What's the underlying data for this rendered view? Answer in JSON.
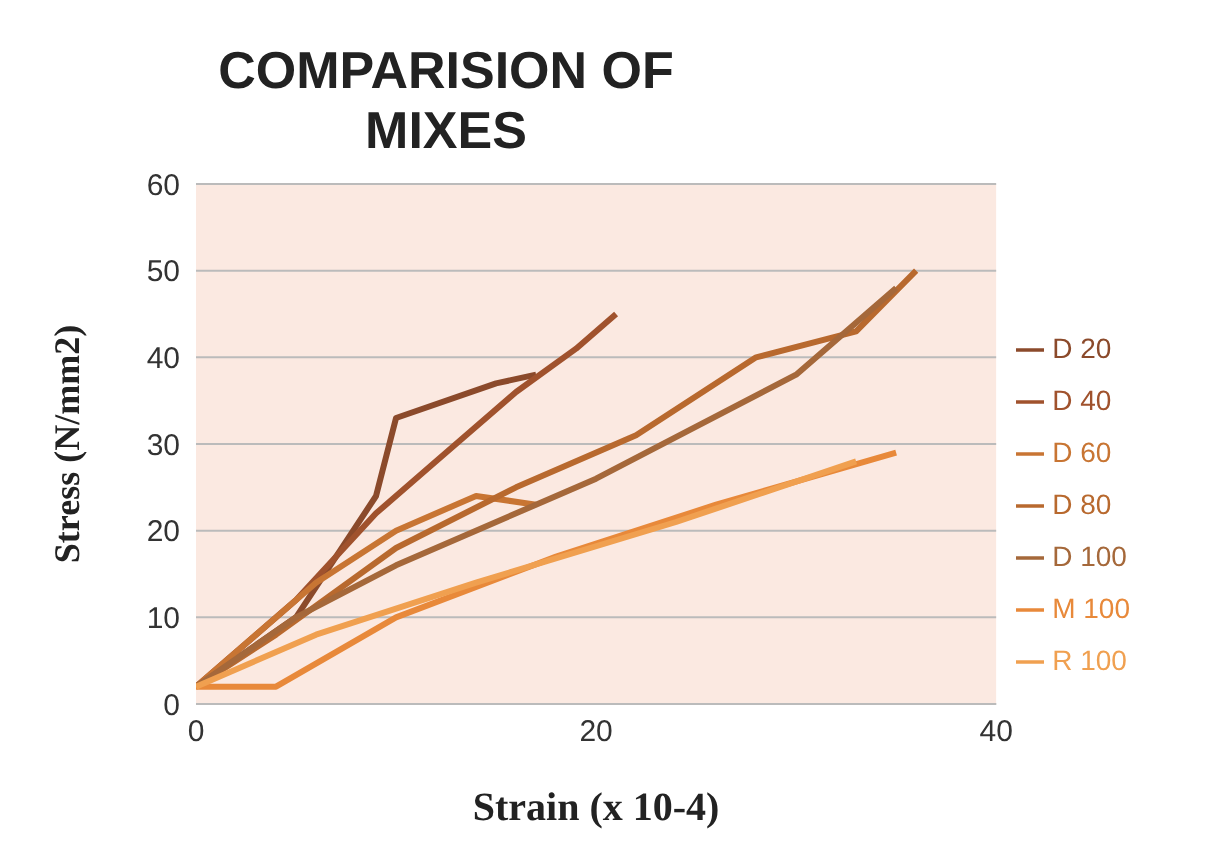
{
  "chart_data": {
    "type": "line",
    "title": "COMPARISION OF MIXES",
    "xlabel": "Strain (x 10-4)",
    "ylabel": "Stress (N/mm2)",
    "xlim": [
      0,
      40
    ],
    "xticks": [
      0,
      20,
      40
    ],
    "ylim": [
      0,
      60
    ],
    "yticks": [
      0,
      10,
      20,
      30,
      40,
      50,
      60
    ],
    "grid": "y",
    "legend": "right",
    "marker": "none",
    "line_style": "solid",
    "series": [
      {
        "name": "D 20",
        "color": "#8b4a2b",
        "x": [
          0,
          5,
          9,
          10,
          15,
          17
        ],
        "values": [
          2,
          10,
          24,
          33,
          37,
          38
        ]
      },
      {
        "name": "D 40",
        "color": "#a0522d",
        "x": [
          0,
          5,
          9,
          12,
          16,
          19,
          21
        ],
        "values": [
          2,
          12,
          22,
          28,
          36,
          41,
          45
        ]
      },
      {
        "name": "D 60",
        "color": "#c87533",
        "x": [
          0,
          6,
          10,
          14,
          17
        ],
        "values": [
          2,
          14,
          20,
          24,
          23
        ]
      },
      {
        "name": "D 80",
        "color": "#b8692e",
        "x": [
          0,
          4,
          10,
          16,
          22,
          28,
          33,
          36
        ],
        "values": [
          2,
          8,
          18,
          25,
          31,
          40,
          43,
          50
        ]
      },
      {
        "name": "D 100",
        "color": "#a5683a",
        "x": [
          0,
          5,
          10,
          20,
          25,
          30,
          35
        ],
        "values": [
          2,
          10,
          16,
          26,
          32,
          38,
          48
        ]
      },
      {
        "name": "M 100",
        "color": "#e8893a",
        "x": [
          0,
          4,
          10,
          18,
          26,
          35
        ],
        "values": [
          2,
          2,
          10,
          17,
          23,
          29
        ]
      },
      {
        "name": "R 100",
        "color": "#f0a050",
        "x": [
          0,
          6,
          14,
          24,
          33
        ],
        "values": [
          2,
          8,
          14,
          21,
          28
        ]
      }
    ]
  }
}
